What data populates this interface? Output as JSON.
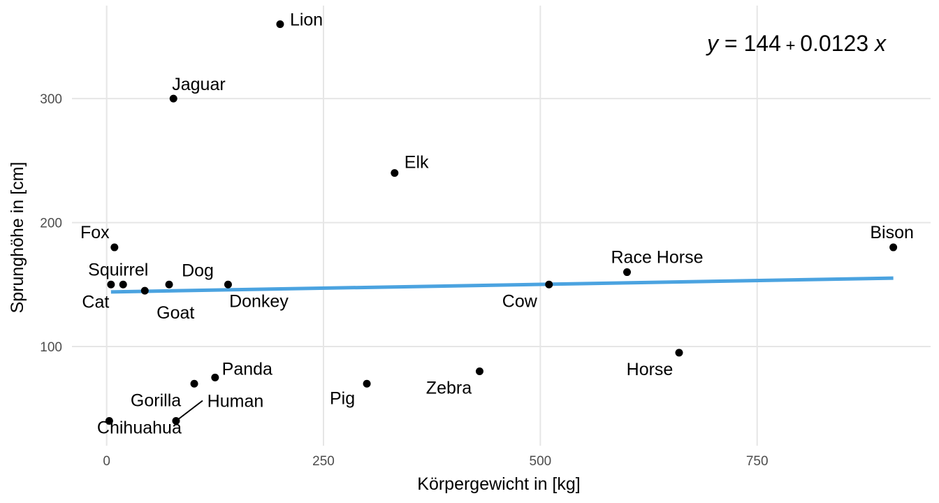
{
  "chart_data": {
    "type": "scatter",
    "title": "",
    "xlabel": "Körpergewicht in [kg]",
    "ylabel": "Sprunghöhe in [cm]",
    "xlim": [
      -40,
      950
    ],
    "ylim": [
      20,
      375
    ],
    "xticks": [
      0,
      250,
      500,
      750
    ],
    "yticks": [
      100,
      200,
      300
    ],
    "x_tick_labels": [
      "0",
      "250",
      "500",
      "750"
    ],
    "y_tick_labels": [
      "100",
      "200",
      "300"
    ],
    "grid": true,
    "legend": "none",
    "points": [
      {
        "label": "Lion",
        "x": 200,
        "y": 360
      },
      {
        "label": "Jaguar",
        "x": 77,
        "y": 300
      },
      {
        "label": "Elk",
        "x": 332,
        "y": 240
      },
      {
        "label": "Fox",
        "x": 9,
        "y": 180
      },
      {
        "label": "Bison",
        "x": 907,
        "y": 180
      },
      {
        "label": "Race Horse",
        "x": 600,
        "y": 160
      },
      {
        "label": "Squirrel",
        "x": 19,
        "y": 150
      },
      {
        "label": "Cat",
        "x": 5,
        "y": 150
      },
      {
        "label": "Dog",
        "x": 72,
        "y": 150
      },
      {
        "label": "Donkey",
        "x": 140,
        "y": 150
      },
      {
        "label": "Goat",
        "x": 44,
        "y": 145
      },
      {
        "label": "Cow",
        "x": 510,
        "y": 150
      },
      {
        "label": "Horse",
        "x": 660,
        "y": 95
      },
      {
        "label": "Panda",
        "x": 125,
        "y": 75
      },
      {
        "label": "Gorilla",
        "x": 101,
        "y": 70
      },
      {
        "label": "Pig",
        "x": 300,
        "y": 70
      },
      {
        "label": "Zebra",
        "x": 430,
        "y": 80
      },
      {
        "label": "Human",
        "x": 80,
        "y": 40
      },
      {
        "label": "Chihuahua",
        "x": 3,
        "y": 40
      }
    ],
    "trend_line": {
      "intercept": 144,
      "slope": 0.0123,
      "x_range": [
        5,
        907
      ],
      "color": "#4ba3e0"
    },
    "equation": {
      "lhs": "y",
      "equals": " = 144",
      "plus": " + ",
      "rest": "0.0123 ",
      "var": "x"
    }
  }
}
